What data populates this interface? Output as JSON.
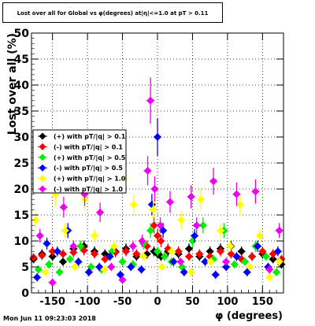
{
  "chart_data": {
    "type": "scatter",
    "title": "Lost over all for Global vs φ(degrees) at|η|<=1.0 at pT > 0.11",
    "xlabel": "φ (degrees)",
    "ylabel": "Lost over all (%)",
    "xlim": [
      -180,
      180
    ],
    "ylim": [
      0,
      50
    ],
    "xticks": [
      -150,
      -100,
      -50,
      0,
      50,
      100,
      150
    ],
    "yticks": [
      0,
      5,
      10,
      15,
      20,
      25,
      30,
      35,
      40,
      45,
      50
    ],
    "grid": true,
    "legend_position": "left",
    "series": [
      {
        "name": "(+) with pT/|q| > 0.1",
        "color": "#000000",
        "x": [
          -177,
          -165,
          -150,
          -135,
          -120,
          -105,
          -90,
          -75,
          -60,
          -45,
          -30,
          -15,
          -5,
          0,
          5,
          15,
          30,
          45,
          60,
          75,
          90,
          105,
          120,
          135,
          150,
          165,
          177
        ],
        "y": [
          6.5,
          7.5,
          7.0,
          6.0,
          8.5,
          9.0,
          8.0,
          7.5,
          8.0,
          8.5,
          7.0,
          7.5,
          8.0,
          7.5,
          7.0,
          8.0,
          7.5,
          8.5,
          7.0,
          8.0,
          8.5,
          9.0,
          8.0,
          7.0,
          7.5,
          6.5,
          5.5
        ]
      },
      {
        "name": "(-) with pT/|q| > 0.1",
        "color": "#ff0000",
        "x": [
          -177,
          -165,
          -150,
          -135,
          -120,
          -105,
          -90,
          -75,
          -60,
          -45,
          -30,
          -15,
          -5,
          0,
          5,
          15,
          30,
          45,
          60,
          75,
          90,
          105,
          120,
          135,
          150,
          165,
          177
        ],
        "y": [
          6.8,
          7.2,
          8.0,
          7.5,
          7.8,
          8.2,
          7.5,
          6.5,
          7.8,
          8.0,
          7.5,
          9.0,
          13.0,
          11.0,
          10.0,
          8.5,
          8.0,
          7.0,
          7.5,
          7.0,
          8.0,
          7.5,
          6.5,
          7.0,
          8.0,
          7.5,
          6.5
        ]
      },
      {
        "name": "(+) with pT/|q| > 0.5",
        "color": "#00ee00",
        "x": [
          -170,
          -155,
          -140,
          -125,
          -110,
          -95,
          -80,
          -65,
          -50,
          -35,
          -20,
          -10,
          0,
          10,
          20,
          35,
          50,
          65,
          80,
          95,
          110,
          125,
          140,
          155,
          170
        ],
        "y": [
          4.5,
          5.5,
          4.0,
          6.5,
          9.0,
          5.0,
          4.5,
          8.0,
          6.0,
          5.5,
          9.5,
          12.0,
          8.0,
          7.0,
          6.0,
          5.0,
          10.0,
          13.0,
          6.5,
          12.0,
          5.5,
          6.0,
          9.0,
          7.0,
          4.0
        ]
      },
      {
        "name": "(-) with pT/|q| > 0.5",
        "color": "#0000ff",
        "x": [
          -172,
          -158,
          -143,
          -128,
          -113,
          -98,
          -83,
          -68,
          -53,
          -38,
          -23,
          -8,
          0,
          8,
          23,
          38,
          53,
          68,
          83,
          98,
          113,
          128,
          143,
          158,
          172
        ],
        "y": [
          3.0,
          9.5,
          8.0,
          12.0,
          6.0,
          4.0,
          5.0,
          7.0,
          3.5,
          5.0,
          4.5,
          17.0,
          30.0,
          12.0,
          6.0,
          4.0,
          11.0,
          6.0,
          3.5,
          5.0,
          7.0,
          4.0,
          9.0,
          5.0,
          8.0
        ]
      },
      {
        "name": "(+) with pT/|q| > 1.0",
        "color": "#ffff00",
        "x": [
          -174,
          -160,
          -146,
          -132,
          -118,
          -104,
          -90,
          -76,
          -62,
          -48,
          -34,
          -20,
          -6,
          6,
          20,
          34,
          48,
          62,
          76,
          90,
          104,
          118,
          132,
          146,
          160,
          174
        ],
        "y": [
          14.0,
          4.0,
          19.0,
          12.0,
          5.0,
          18.0,
          11.0,
          4.5,
          9.0,
          22.0,
          17.0,
          7.0,
          16.0,
          5.0,
          8.0,
          14.0,
          4.0,
          18.0,
          6.0,
          12.0,
          9.0,
          17.0,
          5.0,
          11.0,
          3.0,
          6.0
        ]
      },
      {
        "name": "(-) with pT/|q| > 1.0",
        "color": "#ee00ee",
        "x": [
          -168,
          -150,
          -134,
          -120,
          -104,
          -82,
          -66,
          -50,
          -35,
          -22,
          -14,
          -10,
          -4,
          4,
          18,
          33,
          48,
          56,
          80,
          98,
          113,
          140,
          160,
          174
        ],
        "y": [
          11.0,
          2.0,
          16.5,
          9.0,
          19.0,
          15.5,
          5.0,
          2.5,
          9.0,
          10.0,
          23.5,
          37.0,
          20.0,
          13.0,
          17.5,
          6.0,
          18.5,
          13.0,
          21.5,
          6.0,
          19.0,
          19.5,
          4.5,
          12.0
        ]
      }
    ]
  },
  "footer": {
    "timestamp": "Mon Jun 11 09:23:03 2018"
  }
}
